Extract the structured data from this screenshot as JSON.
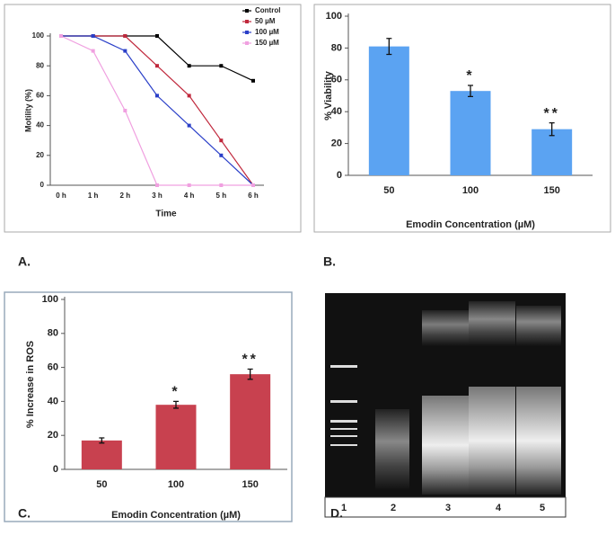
{
  "chart_data": [
    {
      "type": "line",
      "xlabel": "Time",
      "ylabel": "Motility (%)",
      "categories": [
        "0 h",
        "1 h",
        "2 h",
        "3 h",
        "4 h",
        "5 h",
        "6 h"
      ],
      "series": [
        {
          "name": "Control",
          "color": "#000000",
          "values": [
            100,
            100,
            100,
            100,
            80,
            80,
            70
          ]
        },
        {
          "name": "50 µM",
          "color": "#c0283c",
          "values": [
            100,
            100,
            100,
            80,
            60,
            30,
            0
          ]
        },
        {
          "name": "100 µM",
          "color": "#2a3fc8",
          "values": [
            100,
            100,
            90,
            60,
            40,
            20,
            0
          ]
        },
        {
          "name": "150 µM",
          "color": "#f0a0e0",
          "values": [
            100,
            90,
            50,
            0,
            0,
            0,
            0
          ]
        }
      ],
      "ylim": [
        0,
        100
      ],
      "yticks": [
        0,
        20,
        40,
        60,
        80,
        100
      ],
      "legend": "upper right"
    },
    {
      "type": "bar",
      "xlabel": "Emodin Concentration (µM)",
      "ylabel": "% Viability",
      "categories": [
        "50",
        "100",
        "150"
      ],
      "values": [
        81,
        53,
        29
      ],
      "errors": [
        5,
        3.5,
        4
      ],
      "color": "#5ba3f2",
      "ylim": [
        0,
        100
      ],
      "yticks": [
        0,
        20,
        40,
        60,
        80,
        100
      ],
      "annotations": [
        {
          "text": "*",
          "x": "100"
        },
        {
          "text": "**",
          "x": "150"
        }
      ]
    },
    {
      "type": "bar",
      "xlabel": "Emodin Concentration (µM)",
      "ylabel": "% Increase in ROS",
      "categories": [
        "50",
        "100",
        "150"
      ],
      "values": [
        17,
        38,
        56
      ],
      "errors": [
        1.5,
        2,
        3
      ],
      "color": "#c8414f",
      "ylim": [
        0,
        100
      ],
      "yticks": [
        0,
        20,
        40,
        60,
        80,
        100
      ],
      "annotations": [
        {
          "text": "*",
          "x": "100"
        },
        {
          "text": "**",
          "x": "150"
        }
      ]
    }
  ],
  "panel_labels": [
    "A.",
    "B.",
    "C.",
    "D."
  ],
  "gel": {
    "lanes": [
      "1",
      "2",
      "3",
      "4",
      "5"
    ]
  }
}
